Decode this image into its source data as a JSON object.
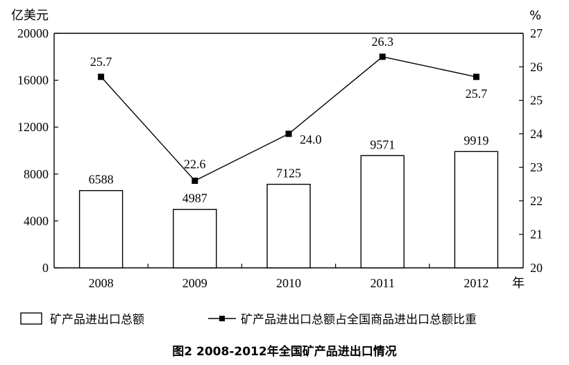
{
  "chart_data": {
    "type": "bar",
    "title": "图2 2008-2012年全国矿产品进出口情况",
    "categories": [
      "2008",
      "2009",
      "2010",
      "2011",
      "2012"
    ],
    "x_unit": "年",
    "y_left_unit": "亿美元",
    "y_right_unit": "%",
    "y_left_ticks": [
      "0",
      "4000",
      "8000",
      "12000",
      "16000",
      "20000"
    ],
    "y_right_ticks": [
      "20",
      "21",
      "22",
      "23",
      "24",
      "25",
      "26",
      "27"
    ],
    "ylim_left": [
      0,
      20000
    ],
    "ylim_right": [
      20,
      27
    ],
    "series": [
      {
        "name": "矿产品进出口总额",
        "kind": "bar",
        "axis": "left",
        "values": [
          6588,
          4987,
          7125,
          9571,
          9919
        ],
        "labels": [
          "6588",
          "4987",
          "7125",
          "9571",
          "9919"
        ]
      },
      {
        "name": "矿产品进出口总额占全国商品进出口总额比重",
        "kind": "line",
        "axis": "right",
        "values": [
          25.7,
          22.6,
          24.0,
          26.3,
          25.7
        ],
        "labels": [
          "25.7",
          "22.6",
          "24.0",
          "26.3",
          "25.7"
        ]
      }
    ],
    "legend_position": "bottom",
    "grid": false
  }
}
